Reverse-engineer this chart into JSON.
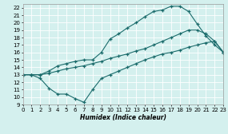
{
  "xlabel": "Humidex (Indice chaleur)",
  "xlim": [
    0,
    23
  ],
  "ylim": [
    9,
    22.5
  ],
  "yticks": [
    9,
    10,
    11,
    12,
    13,
    14,
    15,
    16,
    17,
    18,
    19,
    20,
    21,
    22
  ],
  "xticks": [
    0,
    1,
    2,
    3,
    4,
    5,
    6,
    7,
    8,
    9,
    10,
    11,
    12,
    13,
    14,
    15,
    16,
    17,
    18,
    19,
    20,
    21,
    22,
    23
  ],
  "bg_color": "#d4f0ee",
  "grid_color": "#ffffff",
  "line_color": "#1a6b6b",
  "line1_x": [
    0,
    1,
    2,
    3,
    4,
    5,
    6,
    7,
    8,
    9,
    10,
    11,
    12,
    13,
    14,
    15,
    16,
    17,
    18,
    19,
    20,
    21,
    22,
    23
  ],
  "line1_y": [
    13,
    13,
    12.5,
    11.2,
    10.4,
    10.4,
    9.8,
    9.3,
    11.0,
    12.5,
    13.0,
    13.5,
    14.0,
    14.5,
    15.0,
    15.4,
    15.8,
    16.0,
    16.3,
    16.7,
    17.0,
    17.3,
    17.5,
    16.0
  ],
  "line2_x": [
    0,
    1,
    2,
    3,
    4,
    5,
    6,
    7,
    8,
    9,
    10,
    11,
    12,
    13,
    14,
    15,
    16,
    17,
    18,
    19,
    20,
    21,
    22,
    23
  ],
  "line2_y": [
    13,
    13,
    13.0,
    13.5,
    14.2,
    14.5,
    14.8,
    15.0,
    15.0,
    16.0,
    17.8,
    18.5,
    19.3,
    20.0,
    20.8,
    21.5,
    21.7,
    22.2,
    22.2,
    21.5,
    19.8,
    18.2,
    17.0,
    16.0
  ],
  "line3_x": [
    0,
    1,
    2,
    3,
    4,
    5,
    6,
    7,
    8,
    9,
    10,
    11,
    12,
    13,
    14,
    15,
    16,
    17,
    18,
    19,
    20,
    21,
    22,
    23
  ],
  "line3_y": [
    13,
    13,
    13.0,
    13.2,
    13.5,
    13.8,
    14.0,
    14.2,
    14.5,
    14.8,
    15.2,
    15.5,
    15.8,
    16.2,
    16.5,
    17.0,
    17.5,
    18.0,
    18.5,
    19.0,
    19.0,
    18.5,
    17.5,
    16.0
  ]
}
